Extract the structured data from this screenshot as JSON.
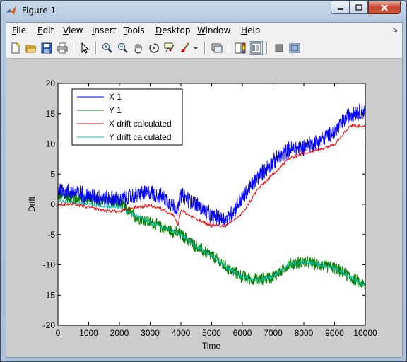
{
  "window": {
    "title": "Figure 1",
    "minimize_label": "minimize",
    "maximize_label": "maximize",
    "close_label": "close"
  },
  "menu": {
    "items": [
      "File",
      "Edit",
      "View",
      "Insert",
      "Tools",
      "Desktop",
      "Window",
      "Help"
    ]
  },
  "toolbar": {
    "buttons": [
      "new-figure-icon",
      "open-file-icon",
      "save-icon",
      "print-icon",
      "edit-plot-arrow-icon",
      "zoom-in-icon",
      "zoom-out-icon",
      "pan-hand-icon",
      "rotate-3d-icon",
      "data-cursor-icon",
      "brush-icon",
      "link-plot-icon",
      "colorbar-icon",
      "legend-icon",
      "hide-plot-tools-icon",
      "show-plot-tools-icon"
    ]
  },
  "colors": {
    "x1": "#0000ff",
    "y1": "#008000",
    "x_drift": "#ff0000",
    "y_drift": "#00bfbf",
    "figure_bg": "#cccccc"
  },
  "chart_data": {
    "type": "line",
    "title": "",
    "xlabel": "Time",
    "ylabel": "Drift",
    "xlim": [
      0,
      10000
    ],
    "ylim": [
      -20,
      20
    ],
    "xticks": [
      0,
      1000,
      2000,
      3000,
      4000,
      5000,
      6000,
      7000,
      8000,
      9000,
      10000
    ],
    "yticks": [
      20,
      15,
      10,
      5,
      0,
      -5,
      -10,
      -15,
      -20
    ],
    "grid": false,
    "legend_location": "top-left",
    "series": [
      {
        "name": "X 1",
        "color": "#0000ff",
        "noise_amplitude": 1.6,
        "x": [
          0,
          500,
          1000,
          1500,
          2000,
          2500,
          3000,
          3500,
          3900,
          4000,
          4500,
          5000,
          5500,
          6000,
          6500,
          7000,
          7500,
          8000,
          8500,
          9000,
          9500,
          10000
        ],
        "y": [
          2.5,
          2.0,
          1.5,
          1.0,
          0.8,
          1.5,
          2.0,
          1.0,
          -1.0,
          1.5,
          0.0,
          -2.0,
          -2.5,
          1.0,
          4.5,
          7.0,
          9.0,
          9.5,
          10.5,
          12.0,
          15.0,
          15.5
        ]
      },
      {
        "name": "Y 1",
        "color": "#008000",
        "noise_amplitude": 1.2,
        "x": [
          0,
          500,
          1000,
          1500,
          2000,
          2500,
          3000,
          3500,
          4000,
          4500,
          5000,
          5500,
          6000,
          6500,
          7000,
          7500,
          8000,
          8500,
          9000,
          9500,
          10000
        ],
        "y": [
          1.5,
          1.0,
          0.8,
          0.5,
          0.2,
          -2.0,
          -3.0,
          -4.0,
          -5.0,
          -7.0,
          -8.5,
          -10.5,
          -12.0,
          -12.5,
          -12.0,
          -10.0,
          -9.5,
          -10.0,
          -10.5,
          -12.0,
          -13.5
        ]
      },
      {
        "name": "X drift calculated",
        "color": "#ff0000",
        "noise_amplitude": 0.25,
        "x": [
          0,
          500,
          1000,
          1500,
          2000,
          2500,
          3000,
          3500,
          3800,
          3900,
          4000,
          4500,
          5000,
          5500,
          6000,
          6500,
          7000,
          7500,
          8000,
          8500,
          9000,
          9500,
          10000
        ],
        "y": [
          0.0,
          0.0,
          -0.5,
          -1.0,
          -1.2,
          -0.5,
          -0.2,
          -1.0,
          -2.0,
          -3.5,
          -1.0,
          -2.5,
          -3.5,
          -3.5,
          -1.5,
          2.5,
          5.0,
          7.5,
          8.5,
          9.0,
          10.0,
          13.0,
          13.0
        ]
      },
      {
        "name": "Y drift calculated",
        "color": "#00bfbf",
        "noise_amplitude": 0.25,
        "x": [
          0,
          500,
          1000,
          1500,
          2000,
          2500,
          3000,
          3500,
          4000,
          4500,
          5000,
          5500,
          6000,
          6500,
          7000,
          7500,
          8000,
          8500,
          9000,
          9500,
          10000
        ],
        "y": [
          0.5,
          0.3,
          0.0,
          -0.3,
          -0.5,
          -1.8,
          -3.0,
          -4.0,
          -5.0,
          -7.0,
          -8.5,
          -10.5,
          -12.0,
          -12.5,
          -12.0,
          -10.0,
          -9.5,
          -10.0,
          -10.5,
          -12.0,
          -13.5
        ]
      }
    ]
  }
}
